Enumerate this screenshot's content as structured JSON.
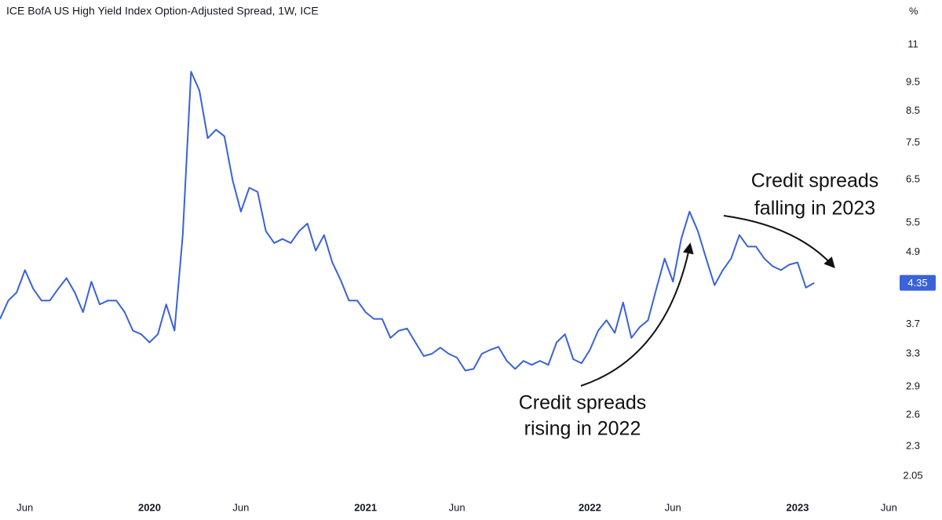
{
  "chart_data": {
    "type": "line",
    "title": "ICE BofA US High Yield Index Option-Adjusted Spread, 1W, ICE",
    "y_label": "%",
    "log_scale": true,
    "grid": false,
    "categories": [
      null,
      null,
      null,
      "Jun",
      null,
      null,
      null,
      null,
      null,
      null,
      null,
      null,
      null,
      null,
      null,
      null,
      null,
      null,
      "2020",
      null,
      null,
      null,
      null,
      null,
      null,
      null,
      null,
      null,
      null,
      "Jun",
      null,
      null,
      null,
      null,
      null,
      null,
      null,
      null,
      null,
      null,
      null,
      null,
      null,
      null,
      "2021",
      null,
      null,
      null,
      null,
      null,
      null,
      null,
      null,
      null,
      null,
      "Jun",
      null,
      null,
      null,
      null,
      null,
      null,
      null,
      null,
      null,
      null,
      null,
      null,
      null,
      null,
      null,
      "2022",
      null,
      null,
      null,
      null,
      null,
      null,
      null,
      null,
      null,
      "Jun",
      null,
      null,
      null,
      null,
      null,
      null,
      null,
      null,
      null,
      null,
      null,
      null,
      null,
      null,
      "2023",
      null,
      null,
      null,
      null,
      null,
      null,
      null,
      null,
      null,
      null,
      "Jun",
      null
    ],
    "series": [
      {
        "name": "ICE BofA US High Yield Index Option-Adjusted Spread",
        "color": "#3a62d9",
        "values": [
          3.78,
          4.06,
          4.19,
          4.57,
          4.25,
          4.06,
          4.06,
          4.25,
          4.43,
          4.19,
          3.88,
          4.37,
          4.0,
          4.06,
          4.06,
          3.88,
          3.61,
          3.56,
          3.45,
          3.56,
          4.0,
          3.61,
          5.24,
          9.9,
          9.2,
          7.64,
          7.9,
          7.7,
          6.49,
          5.74,
          6.3,
          6.2,
          5.32,
          5.08,
          5.16,
          5.08,
          5.32,
          5.48,
          4.93,
          5.24,
          4.71,
          4.4,
          4.06,
          4.06,
          3.88,
          3.78,
          3.78,
          3.51,
          3.61,
          3.64,
          3.45,
          3.27,
          3.3,
          3.38,
          3.3,
          3.25,
          3.09,
          3.11,
          3.3,
          3.35,
          3.39,
          3.21,
          3.11,
          3.21,
          3.16,
          3.21,
          3.16,
          3.45,
          3.56,
          3.23,
          3.18,
          3.35,
          3.61,
          3.76,
          3.58,
          4.03,
          3.51,
          3.66,
          3.76,
          4.25,
          4.78,
          4.37,
          5.16,
          5.74,
          5.32,
          4.78,
          4.31,
          4.57,
          4.78,
          5.24,
          5.01,
          5.01,
          4.78,
          4.64,
          4.57,
          4.67,
          4.71,
          4.27,
          4.35,
          null,
          null,
          null,
          null,
          null,
          null,
          null,
          null,
          null,
          null
        ]
      }
    ],
    "ylim": [
      1.91,
      13.09
    ],
    "yticks": [
      11,
      9.5,
      8.5,
      7.5,
      6.5,
      5.5,
      4.9,
      3.7,
      3.3,
      2.9,
      2.6,
      2.3,
      2.05
    ],
    "annotations": [
      {
        "lines": [
          "Credit spreads",
          "rising in 2022"
        ]
      },
      {
        "lines": [
          "Credit spreads",
          "falling in 2023"
        ]
      }
    ]
  }
}
